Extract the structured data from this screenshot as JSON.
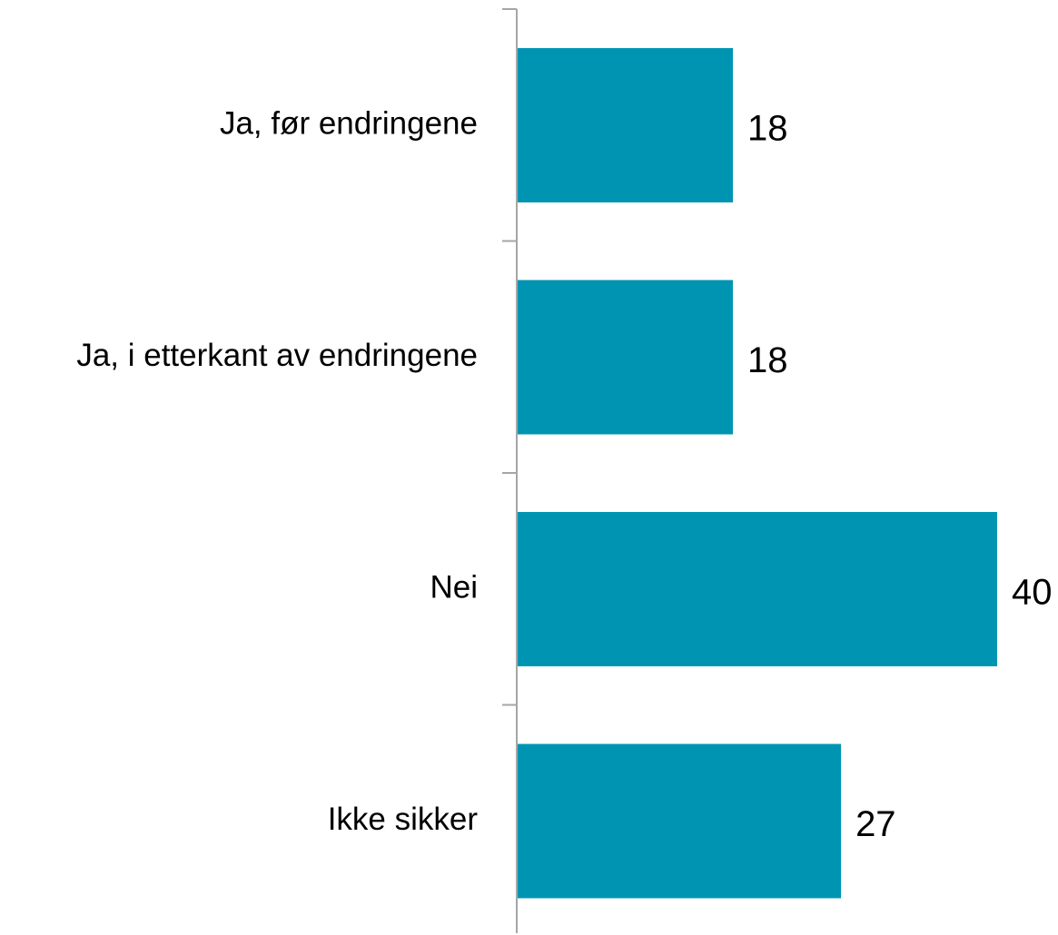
{
  "chart_data": {
    "type": "bar",
    "orientation": "horizontal",
    "categories": [
      "Ja, før endringene",
      "Ja, i etterkant av endringene",
      "Nei",
      "Ikke sikker"
    ],
    "values": [
      18,
      18,
      40,
      27
    ],
    "xlim": [
      0,
      40
    ],
    "title": "",
    "xlabel": "",
    "ylabel": "",
    "bar_color": "#0094b3",
    "axis_color": "#a6a6a6",
    "grid": false,
    "legend": "none",
    "data_labels": true
  }
}
